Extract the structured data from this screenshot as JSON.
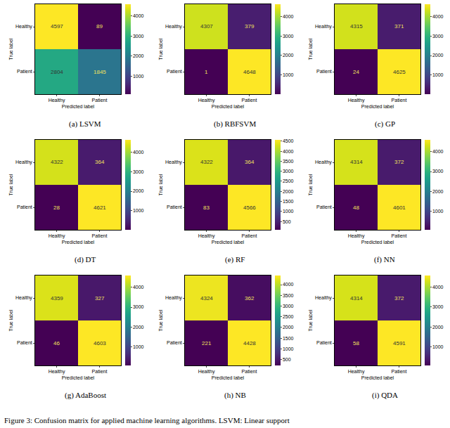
{
  "chart_data": [
    {
      "type": "heatmap",
      "title": "(a) LSVM",
      "categories": [
        "Healthy",
        "Patient"
      ],
      "xlabel": "Predicted label",
      "ylabel": "True label",
      "cells": [
        [
          4597,
          89
        ],
        [
          2804,
          1845
        ]
      ],
      "zlim": [
        89,
        4597
      ],
      "zticks": [
        1000,
        2000,
        3000,
        4000
      ],
      "color": "Viridis",
      "data_labels": true
    },
    {
      "type": "heatmap",
      "title": "(b) RBFSVM",
      "categories": [
        "Healthy",
        "Patient"
      ],
      "xlabel": "Predicted label",
      "ylabel": "True label",
      "cells": [
        [
          4307,
          379
        ],
        [
          1,
          4648
        ]
      ],
      "zlim": [
        1,
        4648
      ],
      "zticks": [
        1000,
        2000,
        3000,
        4000
      ],
      "color": "Viridis",
      "data_labels": true
    },
    {
      "type": "heatmap",
      "title": "(c) GP",
      "categories": [
        "Healthy",
        "Patient"
      ],
      "xlabel": "Predicted label",
      "ylabel": "True label",
      "cells": [
        [
          4315,
          371
        ],
        [
          24,
          4625
        ]
      ],
      "zlim": [
        24,
        4625
      ],
      "zticks": [
        1000,
        2000,
        3000,
        4000
      ],
      "color": "Viridis",
      "data_labels": true
    },
    {
      "type": "heatmap",
      "title": "(d) DT",
      "categories": [
        "Healthy",
        "Patient"
      ],
      "xlabel": "Predicted label",
      "ylabel": "True label",
      "cells": [
        [
          4322,
          364
        ],
        [
          28,
          4621
        ]
      ],
      "zlim": [
        28,
        4621
      ],
      "zticks": [
        1000,
        2000,
        3000,
        4000
      ],
      "color": "Viridis",
      "data_labels": true
    },
    {
      "type": "heatmap",
      "title": "(e) RF",
      "categories": [
        "Healthy",
        "Patient"
      ],
      "xlabel": "Predicted label",
      "ylabel": "True label",
      "cells": [
        [
          4322,
          364
        ],
        [
          83,
          4566
        ]
      ],
      "zlim": [
        83,
        4566
      ],
      "zticks": [
        500,
        1000,
        1500,
        2000,
        2500,
        3000,
        3500,
        4000,
        4500
      ],
      "color": "Viridis",
      "data_labels": true
    },
    {
      "type": "heatmap",
      "title": "(f) NN",
      "categories": [
        "Healthy",
        "Patient"
      ],
      "xlabel": "Predicted label",
      "ylabel": "True label",
      "cells": [
        [
          4314,
          372
        ],
        [
          48,
          4601
        ]
      ],
      "zlim": [
        48,
        4601
      ],
      "zticks": [
        1000,
        2000,
        3000,
        4000
      ],
      "color": "Viridis",
      "data_labels": true
    },
    {
      "type": "heatmap",
      "title": "(g) AdaBoost",
      "categories": [
        "Healthy",
        "Patient"
      ],
      "xlabel": "Predicted label",
      "ylabel": "True label",
      "cells": [
        [
          4359,
          327
        ],
        [
          46,
          4603
        ]
      ],
      "zlim": [
        46,
        4603
      ],
      "zticks": [
        1000,
        2000,
        3000,
        4000
      ],
      "color": "Viridis",
      "data_labels": true
    },
    {
      "type": "heatmap",
      "title": "(h) NB",
      "categories": [
        "Healthy",
        "Patient"
      ],
      "xlabel": "Predicted label",
      "ylabel": "True label",
      "cells": [
        [
          4324,
          362
        ],
        [
          221,
          4428
        ]
      ],
      "zlim": [
        221,
        4428
      ],
      "zticks": [
        500,
        1000,
        1500,
        2000,
        2500,
        3000,
        3500,
        4000
      ],
      "color": "Viridis",
      "data_labels": true
    },
    {
      "type": "heatmap",
      "title": "(i) QDA",
      "categories": [
        "Healthy",
        "Patient"
      ],
      "xlabel": "Predicted label",
      "ylabel": "True label",
      "cells": [
        [
          4314,
          372
        ],
        [
          58,
          4591
        ]
      ],
      "zlim": [
        58,
        4591
      ],
      "zticks": [
        1000,
        2000,
        3000,
        4000
      ],
      "color": "Viridis",
      "data_labels": true
    }
  ],
  "caption": "Figure 3: Confusion matrix for applied machine learning algorithms. LSVM: Linear support"
}
